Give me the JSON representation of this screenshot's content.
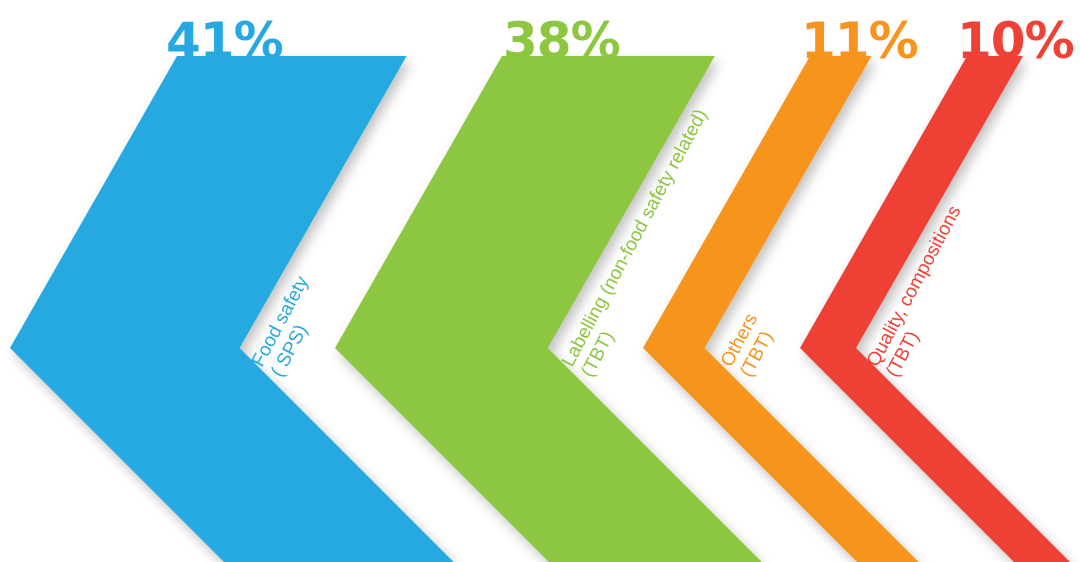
{
  "chart_data": {
    "type": "bar",
    "title": "",
    "series": [
      {
        "values": [
          41,
          38,
          11,
          10
        ]
      }
    ],
    "categories": [
      "Food safety ( SPS)",
      "Labelling (non-food safety related) (TBT)",
      "Others (TBT)",
      "Quality, compositions (TBT)"
    ],
    "items": [
      {
        "value": 41,
        "percent_label": "41%",
        "label_line1": "Food safety",
        "label_line2": "( SPS)",
        "color": "#27a8e0"
      },
      {
        "value": 38,
        "percent_label": "38%",
        "label_line1": "Labelling (non-food safety related)",
        "label_line2": "(TBT)",
        "color": "#8dc63f"
      },
      {
        "value": 11,
        "percent_label": "11%",
        "label_line1": "Others",
        "label_line2": "(TBT)",
        "color": "#f7941d"
      },
      {
        "value": 10,
        "percent_label": "10%",
        "label_line1": "Quality, compositions",
        "label_line2": "(TBT)",
        "color": "#ef4136"
      }
    ],
    "unit": "%",
    "legend": "none",
    "grid": false
  }
}
